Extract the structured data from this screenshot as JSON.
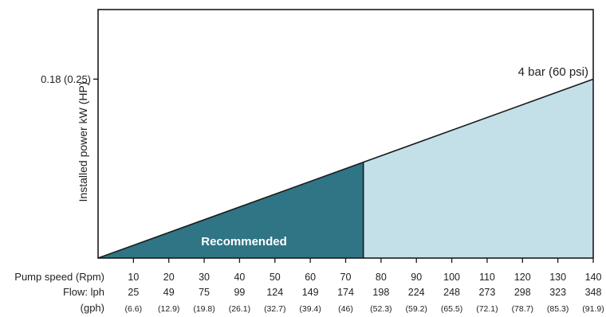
{
  "chart_data": {
    "type": "area",
    "title": "",
    "ylabel": "Installed power kW (HP)",
    "y_tick": {
      "value": 0.18,
      "label": "0.18 (0.25)"
    },
    "series_label": "4 bar (60 psi)",
    "region_label": "Recommended",
    "row_labels": {
      "rpm": "Pump speed (Rpm)",
      "lph": "Flow: lph",
      "gph": "(gph)"
    },
    "pump_speed_rpm": [
      10,
      20,
      30,
      40,
      50,
      60,
      70,
      80,
      90,
      100,
      110,
      120,
      130,
      140
    ],
    "flow_lph": [
      "25",
      "49",
      "75",
      "99",
      "124",
      "149",
      "174",
      "198",
      "224",
      "248",
      "273",
      "298",
      "323",
      "348"
    ],
    "flow_gph": [
      "(6.6)",
      "(12.9)",
      "(19.8)",
      "(26.1)",
      "(32.7)",
      "(39.4)",
      "(46)",
      "(52.3)",
      "(59.2)",
      "(65.5)",
      "(72.1)",
      "(78.7)",
      "(85.3)",
      "(91.9)"
    ],
    "line": {
      "x": [
        0,
        140
      ],
      "y": [
        0,
        0.18
      ]
    },
    "recommended_max_rpm": 75,
    "xlim": [
      0,
      140
    ],
    "ylim": [
      0,
      0.25
    ],
    "grid": false,
    "colors": {
      "recommended": "#2f7585",
      "extended": "#c3e0e8",
      "line": "#1a1a1a",
      "frame": "#1a1a1a"
    }
  }
}
